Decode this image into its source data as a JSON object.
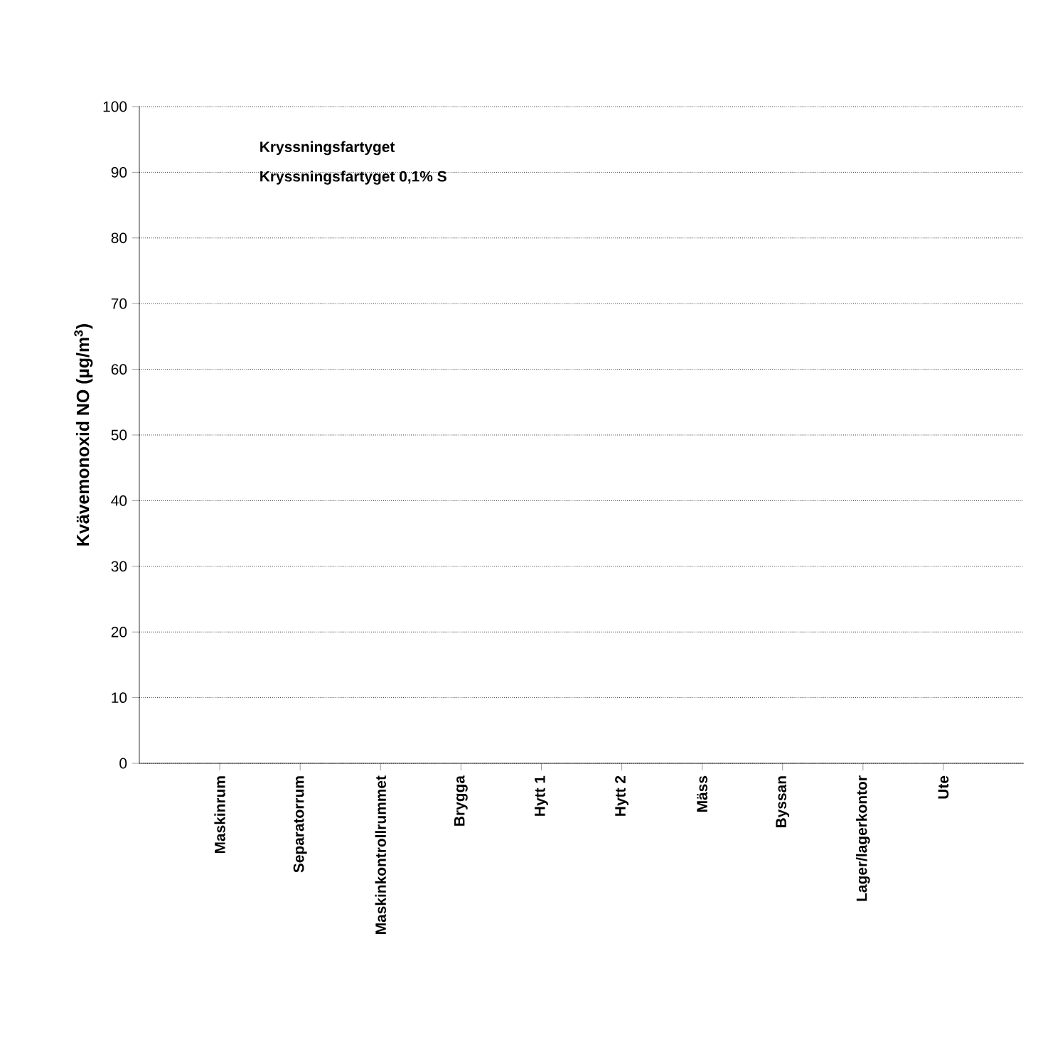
{
  "chart_data": {
    "type": "bar",
    "ylabel": "Kvävemonoxid NO (µg/m$^{3}$)",
    "categories": [
      "Maskinrum",
      "Separatorrum",
      "Maskinkontrollrummet",
      "Brygga",
      "Hytt 1",
      "Hytt 2",
      "Mäss",
      "Byssan",
      "Lager/lagerkontor",
      "Ute"
    ],
    "series": [
      {
        "name": "Kryssningsfartyget",
        "values": [
          null,
          null,
          null,
          null,
          null,
          null,
          null,
          null,
          null,
          null
        ]
      },
      {
        "name": "Kryssningsfartyget 0,1% S",
        "values": [
          null,
          null,
          null,
          null,
          null,
          null,
          null,
          null,
          null,
          null
        ]
      }
    ],
    "ylim": [
      0,
      100
    ],
    "yticks": [
      0,
      10,
      20,
      30,
      40,
      50,
      60,
      70,
      80,
      90,
      100
    ],
    "grid": "y"
  }
}
